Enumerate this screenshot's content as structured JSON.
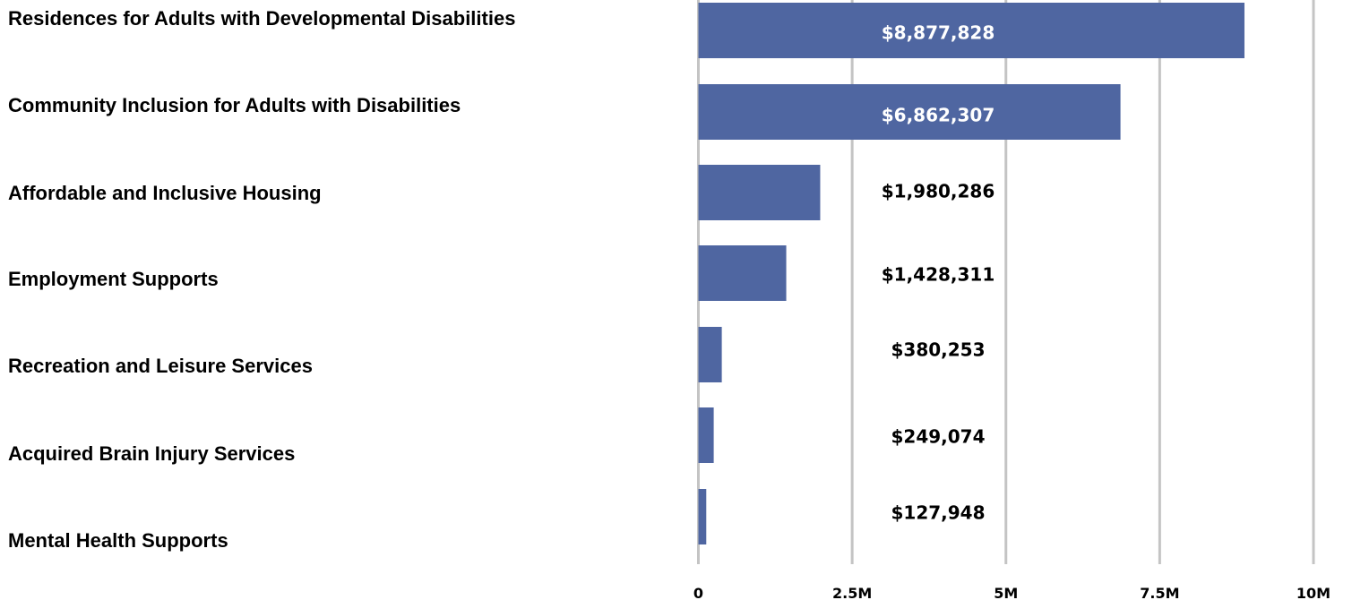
{
  "chart_data": {
    "type": "bar",
    "orientation": "horizontal",
    "categories": [
      "Residences for Adults with Developmental Disabilities",
      "Community Inclusion for Adults with Disabilities",
      "Affordable and Inclusive Housing",
      "Employment Supports",
      "Recreation and Leisure Services",
      "Acquired Brain Injury Services",
      "Mental Health Supports"
    ],
    "values": [
      8877828,
      6862307,
      1980286,
      1428311,
      380253,
      249074,
      127948
    ],
    "value_labels": [
      "$8,877,828",
      "$6,862,307",
      "$1,980,286",
      "$1,428,311",
      "$380,253",
      "$249,074",
      "$127,948"
    ],
    "xlim": [
      0,
      10000000
    ],
    "x_ticks": [
      0,
      2500000,
      5000000,
      7500000,
      10000000
    ],
    "x_tick_labels": [
      "0",
      "2.5M",
      "5M",
      "7.5M",
      "10M"
    ],
    "grid": true,
    "title": "",
    "xlabel": "",
    "ylabel": "",
    "legend": "none",
    "colors": {
      "bar": "#4f66a1",
      "grid": "#c4c4c4",
      "label_inside": "#ffffff",
      "label_outside": "#000000"
    }
  }
}
